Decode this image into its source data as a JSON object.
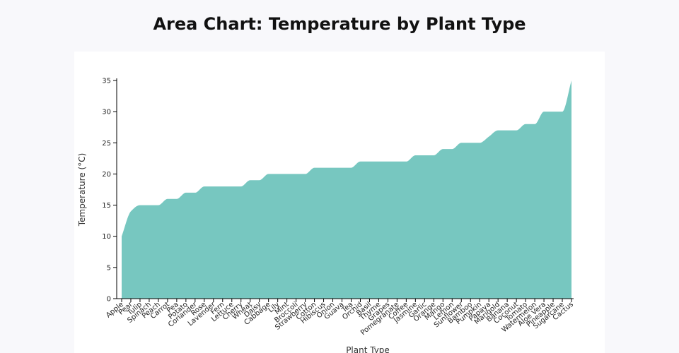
{
  "chart_data": {
    "type": "area",
    "title": "Area Chart: Temperature by Plant Type",
    "xlabel": "Plant Type",
    "ylabel": "Temperature (°C)",
    "ylim": [
      0,
      35
    ],
    "yticks": [
      0,
      5,
      10,
      15,
      20,
      25,
      30,
      35
    ],
    "grid": false,
    "fill_color": "#77c7c0",
    "categories": [
      "Apple",
      "Pear",
      "Tulip",
      "Spinach",
      "Peach",
      "Carrot",
      "Pea",
      "Potato",
      "Coriander",
      "Rose",
      "Lavender",
      "Fern",
      "Lettuce",
      "Cherry",
      "Wheat",
      "Daisy",
      "Cabbage",
      "Lily",
      "Mint",
      "Broccoli",
      "Strawberry",
      "Cotton",
      "Hibiscus",
      "Onion",
      "Guava",
      "Tea",
      "Orchid",
      "Basil",
      "Thyme",
      "Grapes",
      "Pomegranate",
      "Coffee",
      "Jasmine",
      "Garlic",
      "Orange",
      "Mango",
      "Lemon",
      "Sunflower",
      "Bamboo",
      "Pumpkin",
      "Papaya",
      "Marigold",
      "Banana",
      "Coconut",
      "Tomato",
      "Watermelon",
      "Aloe Vera",
      "Pineapple",
      "Sugarcane",
      "Cactus"
    ],
    "values": [
      10,
      14,
      15,
      15,
      15,
      16,
      16,
      17,
      17,
      18,
      18,
      18,
      18,
      18,
      19,
      19,
      20,
      20,
      20,
      20,
      20,
      21,
      21,
      21,
      21,
      21,
      22,
      22,
      22,
      22,
      22,
      22,
      23,
      23,
      23,
      24,
      24,
      25,
      25,
      25,
      26,
      27,
      27,
      27,
      28,
      28,
      30,
      30,
      30,
      35
    ]
  }
}
